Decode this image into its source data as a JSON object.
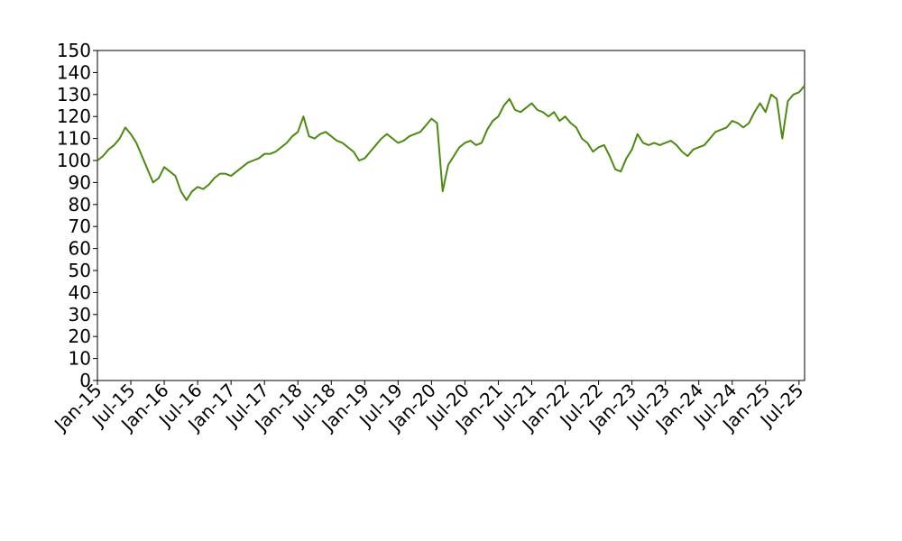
{
  "chart_data": {
    "type": "line",
    "color": "#4c8a12",
    "x": [
      "2015-01",
      "2015-02",
      "2015-03",
      "2015-04",
      "2015-05",
      "2015-06",
      "2015-07",
      "2015-08",
      "2015-09",
      "2015-10",
      "2015-11",
      "2015-12",
      "2016-01",
      "2016-02",
      "2016-03",
      "2016-04",
      "2016-05",
      "2016-06",
      "2016-07",
      "2016-08",
      "2016-09",
      "2016-10",
      "2016-11",
      "2016-12",
      "2017-01",
      "2017-02",
      "2017-03",
      "2017-04",
      "2017-05",
      "2017-06",
      "2017-07",
      "2017-08",
      "2017-09",
      "2017-10",
      "2017-11",
      "2017-12",
      "2018-01",
      "2018-02",
      "2018-03",
      "2018-04",
      "2018-05",
      "2018-06",
      "2018-07",
      "2018-08",
      "2018-09",
      "2018-10",
      "2018-11",
      "2018-12",
      "2019-01",
      "2019-02",
      "2019-03",
      "2019-04",
      "2019-05",
      "2019-06",
      "2019-07",
      "2019-08",
      "2019-09",
      "2019-10",
      "2019-11",
      "2019-12",
      "2020-01",
      "2020-02",
      "2020-03",
      "2020-04",
      "2020-05",
      "2020-06",
      "2020-07",
      "2020-08",
      "2020-09",
      "2020-10",
      "2020-11",
      "2020-12",
      "2021-01",
      "2021-02",
      "2021-03",
      "2021-04",
      "2021-05",
      "2021-06",
      "2021-07",
      "2021-08",
      "2021-09",
      "2021-10",
      "2021-11",
      "2021-12",
      "2022-01",
      "2022-02",
      "2022-03",
      "2022-04",
      "2022-05",
      "2022-06",
      "2022-07",
      "2022-08",
      "2022-09",
      "2022-10",
      "2022-11",
      "2022-12",
      "2023-01",
      "2023-02",
      "2023-03",
      "2023-04",
      "2023-05",
      "2023-06",
      "2023-07",
      "2023-08",
      "2023-09",
      "2023-10",
      "2023-11",
      "2023-12",
      "2024-01",
      "2024-02",
      "2024-03",
      "2024-04",
      "2024-05",
      "2024-06",
      "2024-07",
      "2024-08",
      "2024-09",
      "2024-10",
      "2024-11",
      "2024-12",
      "2025-01",
      "2025-02",
      "2025-03",
      "2025-04",
      "2025-05",
      "2025-06",
      "2025-07",
      "2025-08"
    ],
    "values": [
      100,
      102,
      105,
      107,
      110,
      115,
      112,
      108,
      102,
      96,
      90,
      92,
      97,
      95,
      93,
      86,
      82,
      86,
      88,
      87,
      89,
      92,
      94,
      94,
      93,
      95,
      97,
      99,
      100,
      101,
      103,
      103,
      104,
      106,
      108,
      111,
      113,
      120,
      111,
      110,
      112,
      113,
      111,
      109,
      108,
      106,
      104,
      100,
      101,
      104,
      107,
      110,
      112,
      110,
      108,
      109,
      111,
      112,
      113,
      116,
      119,
      117,
      86,
      98,
      102,
      106,
      108,
      109,
      107,
      108,
      114,
      118,
      120,
      125,
      128,
      123,
      122,
      124,
      126,
      123,
      122,
      120,
      122,
      118,
      120,
      117,
      115,
      110,
      108,
      104,
      106,
      107,
      102,
      96,
      95,
      101,
      105,
      112,
      108,
      107,
      108,
      107,
      108,
      109,
      107,
      104,
      102,
      105,
      106,
      107,
      110,
      113,
      114,
      115,
      118,
      117,
      115,
      117,
      122,
      126,
      122,
      130,
      128,
      110,
      127,
      130,
      131,
      134
    ],
    "xlim": [
      "2015-01",
      "2025-08"
    ],
    "xticks": [
      {
        "value": "2015-01",
        "label": "Jan-15"
      },
      {
        "value": "2015-07",
        "label": "Jul-15"
      },
      {
        "value": "2016-01",
        "label": "Jan-16"
      },
      {
        "value": "2016-07",
        "label": "Jul-16"
      },
      {
        "value": "2017-01",
        "label": "Jan-17"
      },
      {
        "value": "2017-07",
        "label": "Jul-17"
      },
      {
        "value": "2018-01",
        "label": "Jan-18"
      },
      {
        "value": "2018-07",
        "label": "Jul-18"
      },
      {
        "value": "2019-01",
        "label": "Jan-19"
      },
      {
        "value": "2019-07",
        "label": "Jul-19"
      },
      {
        "value": "2020-01",
        "label": "Jan-20"
      },
      {
        "value": "2020-07",
        "label": "Jul-20"
      },
      {
        "value": "2021-01",
        "label": "Jan-21"
      },
      {
        "value": "2021-07",
        "label": "Jul-21"
      },
      {
        "value": "2022-01",
        "label": "Jan-22"
      },
      {
        "value": "2022-07",
        "label": "Jul-22"
      },
      {
        "value": "2023-01",
        "label": "Jan-23"
      },
      {
        "value": "2023-07",
        "label": "Jul-23"
      },
      {
        "value": "2024-01",
        "label": "Jan-24"
      },
      {
        "value": "2024-07",
        "label": "Jul-24"
      },
      {
        "value": "2025-01",
        "label": "Jan-25"
      },
      {
        "value": "2025-07",
        "label": "Jul-25"
      }
    ],
    "ylim": [
      0,
      150
    ],
    "yticks": [
      0,
      10,
      20,
      30,
      40,
      50,
      60,
      70,
      80,
      90,
      100,
      110,
      120,
      130,
      140,
      150
    ]
  }
}
